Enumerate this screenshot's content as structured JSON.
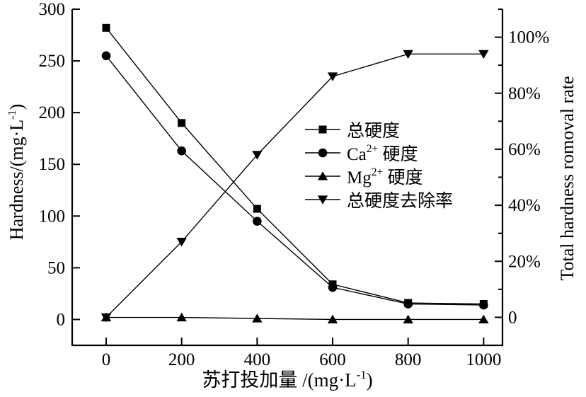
{
  "chart_data": {
    "type": "line",
    "title": "",
    "x": [
      0,
      200,
      400,
      600,
      800,
      1000
    ],
    "series": [
      {
        "name": "总硬度",
        "marker": "square",
        "axis": "left",
        "values": [
          282,
          190,
          107,
          34,
          16,
          15
        ]
      },
      {
        "name": "Ca2+ 硬度",
        "marker": "circle",
        "axis": "left",
        "values": [
          255,
          163,
          95,
          31,
          15,
          14
        ]
      },
      {
        "name": "Mg2+ 硬度",
        "marker": "triangle-up",
        "axis": "left",
        "values": [
          2,
          2,
          1,
          0,
          0,
          0
        ]
      },
      {
        "name": "总硬度去除率",
        "marker": "triangle-down",
        "axis": "right",
        "values": [
          0,
          27,
          58,
          86,
          94,
          94
        ]
      }
    ],
    "axes": {
      "x": {
        "label_pre": "苏打投加量 /(mg·L",
        "label_sup": "-1",
        "label_post": ")",
        "range": [
          -90,
          1050
        ],
        "ticks": [
          {
            "v": 0,
            "label": "0"
          },
          {
            "v": 200,
            "label": "200"
          },
          {
            "v": 400,
            "label": "400"
          },
          {
            "v": 600,
            "label": "600"
          },
          {
            "v": 800,
            "label": "800"
          },
          {
            "v": 1000,
            "label": "1000"
          }
        ]
      },
      "left": {
        "label_pre": "Hardness/(mg·L",
        "label_sup": "-1",
        "label_post": ")",
        "range": [
          -25,
          300
        ],
        "ticks": [
          {
            "v": 0,
            "label": "0"
          },
          {
            "v": 50,
            "label": "50"
          },
          {
            "v": 100,
            "label": "100"
          },
          {
            "v": 150,
            "label": "150"
          },
          {
            "v": 200,
            "label": "200"
          },
          {
            "v": 250,
            "label": "250"
          },
          {
            "v": 300,
            "label": "300"
          }
        ]
      },
      "right": {
        "label": "Total hardness romoval rate",
        "range": [
          -10,
          110
        ],
        "ticks": [
          {
            "v": 0,
            "label": "0"
          },
          {
            "v": 20,
            "label": "20%"
          },
          {
            "v": 40,
            "label": "40%"
          },
          {
            "v": 60,
            "label": "60%"
          },
          {
            "v": 80,
            "label": "80%"
          },
          {
            "v": 100,
            "label": "100%"
          }
        ],
        "minor_ticks": [
          10,
          30,
          50,
          70,
          90,
          110
        ]
      }
    },
    "legend": {
      "position": "center-right",
      "items": [
        {
          "pre": "总硬度",
          "sup": "",
          "post": "",
          "marker": "square"
        },
        {
          "pre": "Ca",
          "sup": "2+",
          "post": " 硬度",
          "marker": "circle"
        },
        {
          "pre": "Mg",
          "sup": "2+",
          "post": " 硬度",
          "marker": "triangle-up"
        },
        {
          "pre": "总硬度去除率",
          "sup": "",
          "post": "",
          "marker": "triangle-down"
        }
      ]
    },
    "grid": false,
    "colors": {
      "line": "#000000",
      "marker": "#000000",
      "axis": "#000000",
      "background": "#ffffff"
    }
  }
}
